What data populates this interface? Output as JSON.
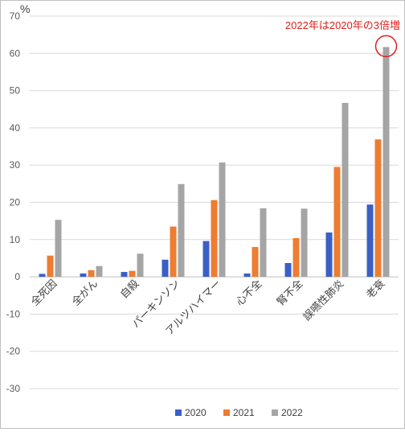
{
  "chart_data": {
    "type": "bar",
    "y_unit": "%",
    "ylim": [
      -30,
      70
    ],
    "yticks": [
      -30,
      -20,
      -10,
      0,
      10,
      20,
      30,
      40,
      50,
      60,
      70
    ],
    "grid": true,
    "legend_position": "bottom",
    "categories": [
      "全死因",
      "全がん",
      "自殺",
      "パーキンソン",
      "アルツハイマー",
      "心不全",
      "腎不全",
      "誤嚥性肺炎",
      "老衰"
    ],
    "series": [
      {
        "name": "2020",
        "color": "#3a5fc6",
        "values": [
          0.8,
          0.9,
          1.3,
          4.6,
          9.6,
          0.9,
          3.7,
          11.9,
          19.4
        ]
      },
      {
        "name": "2021",
        "color": "#ed7d31",
        "values": [
          5.7,
          1.8,
          1.6,
          13.5,
          20.6,
          8.0,
          10.4,
          29.5,
          36.9
        ]
      },
      {
        "name": "2022",
        "color": "#a5a5a5",
        "values": [
          15.3,
          2.9,
          6.2,
          24.9,
          30.7,
          18.4,
          18.3,
          46.7,
          61.7
        ]
      }
    ],
    "annotation": {
      "text": "2022年は2020年の3倍増",
      "color": "#e0201b",
      "target_category": "老衰",
      "target_series": "2022"
    }
  }
}
